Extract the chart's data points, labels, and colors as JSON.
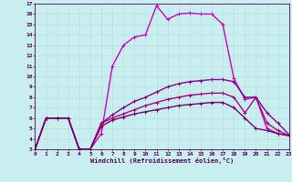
{
  "xlabel": "Windchill (Refroidissement éolien,°C)",
  "xlim": [
    0,
    23
  ],
  "ylim": [
    3,
    17
  ],
  "yticks": [
    3,
    4,
    5,
    6,
    7,
    8,
    9,
    10,
    11,
    12,
    13,
    14,
    15,
    16,
    17
  ],
  "xticks": [
    0,
    1,
    2,
    3,
    4,
    5,
    6,
    7,
    8,
    9,
    10,
    11,
    12,
    13,
    14,
    15,
    16,
    17,
    18,
    19,
    20,
    21,
    22,
    23
  ],
  "bg_color": "#c8eef0",
  "curves": [
    {
      "x": [
        0,
        1,
        2,
        3,
        4,
        5,
        6,
        7,
        8,
        9,
        10,
        11,
        12,
        13,
        14,
        15,
        16,
        17,
        18,
        19,
        20,
        21,
        22,
        23
      ],
      "y": [
        3.0,
        6.0,
        6.0,
        6.0,
        3.0,
        3.0,
        4.5,
        11.0,
        13.0,
        13.8,
        14.0,
        16.8,
        15.5,
        16.0,
        16.1,
        16.0,
        16.0,
        15.0,
        9.8,
        7.8,
        8.0,
        5.0,
        4.5,
        4.3
      ],
      "color": "#cc00cc",
      "lw": 1.0
    },
    {
      "x": [
        0,
        1,
        2,
        3,
        4,
        5,
        6,
        7,
        8,
        9,
        10,
        11,
        12,
        13,
        14,
        15,
        16,
        17,
        18,
        19,
        20,
        21,
        22,
        23
      ],
      "y": [
        3.0,
        6.0,
        6.0,
        6.0,
        3.0,
        3.0,
        5.5,
        6.3,
        7.0,
        7.6,
        8.0,
        8.5,
        9.0,
        9.3,
        9.5,
        9.6,
        9.7,
        9.7,
        9.5,
        8.0,
        8.0,
        6.5,
        5.5,
        4.4
      ],
      "color": "#880099",
      "lw": 1.0
    },
    {
      "x": [
        0,
        1,
        2,
        3,
        4,
        5,
        6,
        7,
        8,
        9,
        10,
        11,
        12,
        13,
        14,
        15,
        16,
        17,
        18,
        19,
        20,
        21,
        22,
        23
      ],
      "y": [
        3.0,
        6.0,
        6.0,
        6.0,
        3.0,
        3.0,
        5.5,
        6.0,
        6.4,
        6.8,
        7.2,
        7.5,
        7.8,
        8.0,
        8.2,
        8.3,
        8.4,
        8.4,
        8.0,
        6.5,
        8.0,
        5.5,
        4.8,
        4.3
      ],
      "color": "#aa0088",
      "lw": 1.0
    },
    {
      "x": [
        0,
        1,
        2,
        3,
        4,
        5,
        6,
        7,
        8,
        9,
        10,
        11,
        12,
        13,
        14,
        15,
        16,
        17,
        18,
        19,
        20,
        21,
        22,
        23
      ],
      "y": [
        3.0,
        6.0,
        6.0,
        6.0,
        3.0,
        3.0,
        5.2,
        5.8,
        6.1,
        6.4,
        6.6,
        6.8,
        7.0,
        7.2,
        7.3,
        7.4,
        7.5,
        7.5,
        7.0,
        6.0,
        5.0,
        4.8,
        4.5,
        4.3
      ],
      "color": "#770077",
      "lw": 1.0
    }
  ]
}
